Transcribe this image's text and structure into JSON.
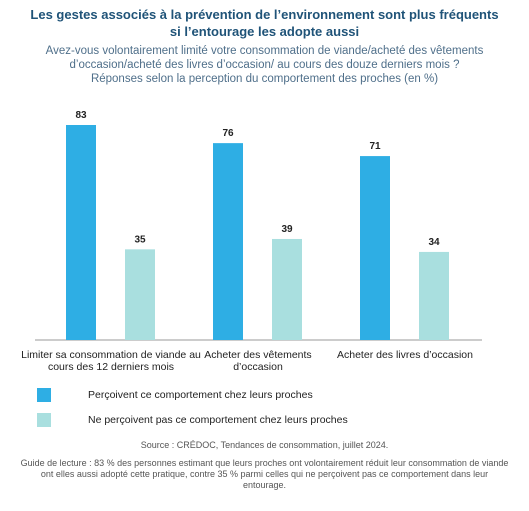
{
  "chart_data": {
    "type": "bar",
    "title": [
      "Les gestes associés à la prévention de l’environnement sont plus fréquents",
      "si l’entourage les adopte aussi"
    ],
    "subtitle": [
      "Avez-vous volontairement limité votre consommation de viande/acheté des vêtements",
      "d’occasion/acheté des livres d’occasion/ au cours des douze derniers mois ?",
      "Réponses selon la perception du comportement des proches (en %)"
    ],
    "categories": [
      "Limiter sa consommation de viande au cours des 12 derniers mois",
      "Acheter des vêtements d’occasion",
      "Acheter des livres d’occasion"
    ],
    "series": [
      {
        "name": "Perçoivent ce comportement chez leurs proches",
        "color": "#2eaee4",
        "values": [
          83,
          76,
          71
        ]
      },
      {
        "name": "Ne perçoivent pas ce comportement chez leurs proches",
        "color": "#a9dfdf",
        "values": [
          35,
          39,
          34
        ]
      }
    ],
    "source": "Source : CRÉDOC, Tendances de consommation, juillet 2024.",
    "note": "Guide de lecture : 83 % des personnes estimant que leurs proches ont volontairement réduit leur consommation de viande ont elles aussi adopté cette pratique, contre 35 % parmi celles qui ne perçoivent pas ce comportement dans leur entourage."
  }
}
